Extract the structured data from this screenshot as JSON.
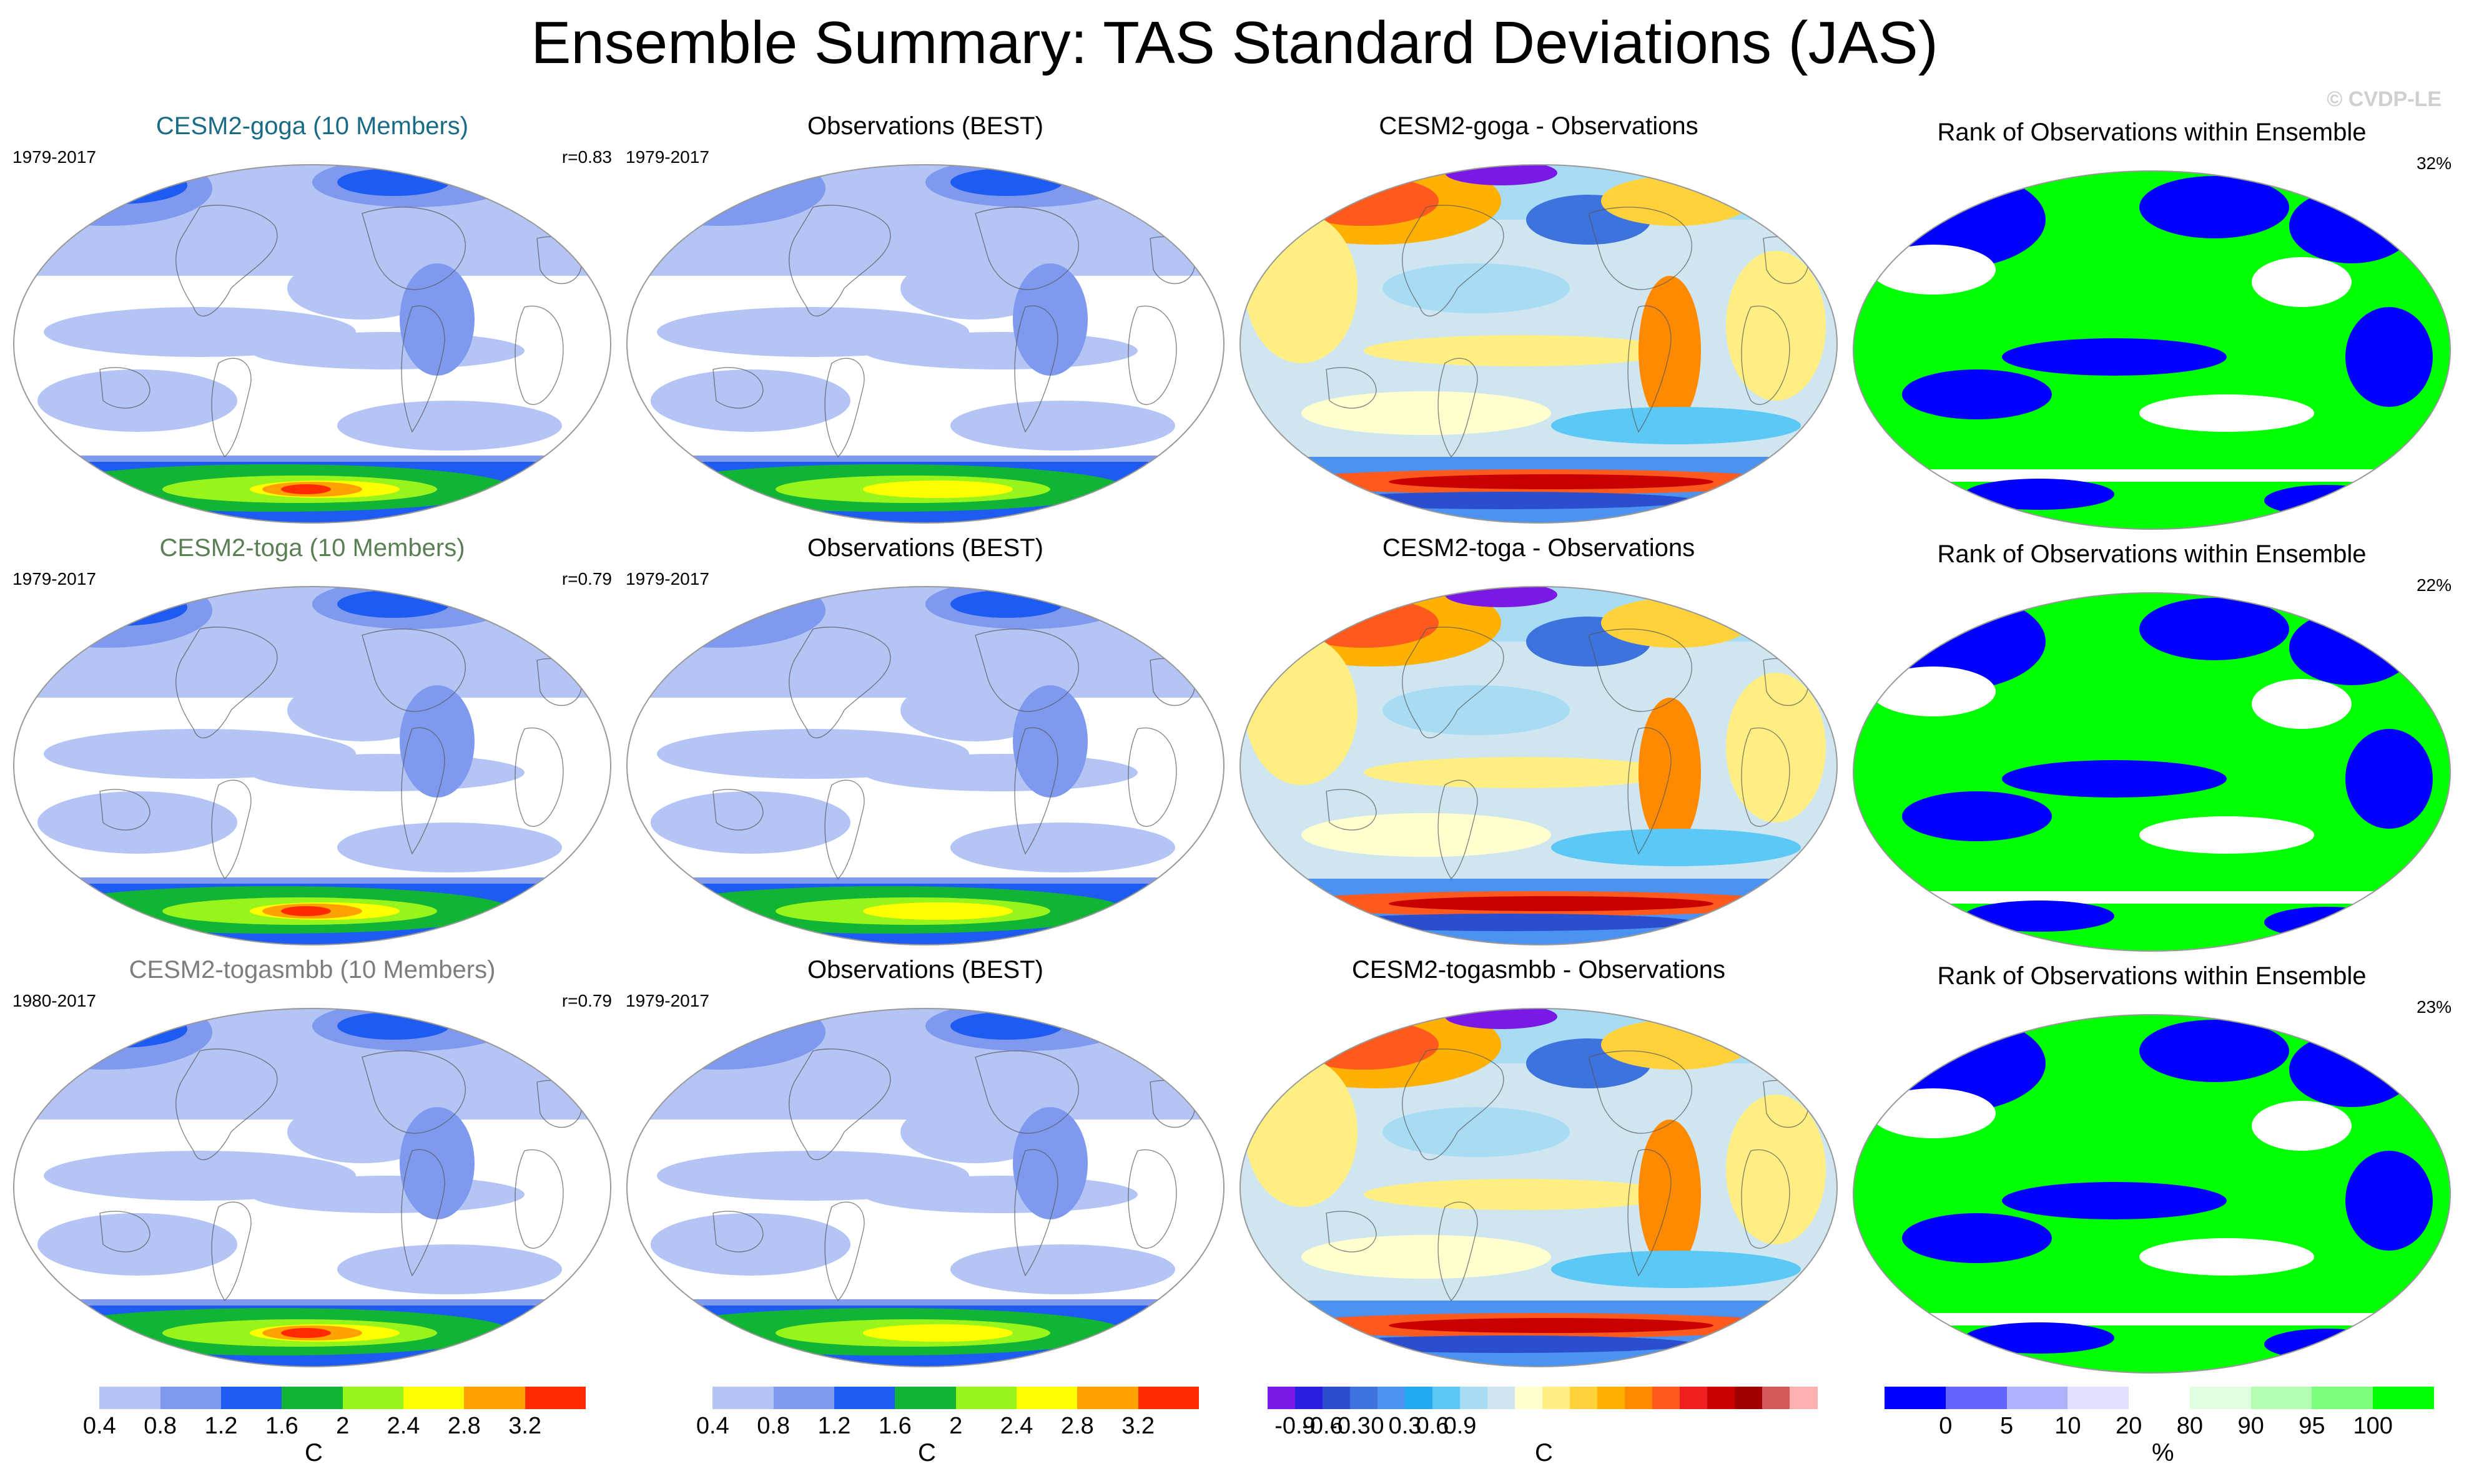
{
  "title": "Ensemble Summary: TAS Standard Deviations (JAS)",
  "credit": "© CVDP-LE",
  "rows": [
    {
      "model": {
        "title": "CESM2-goga (10 Members)",
        "title_color": "#1a6b86",
        "years": "1979-2017",
        "r": "r=0.83"
      },
      "obs": {
        "title": "Observations (BEST)",
        "years": "1979-2017"
      },
      "diff": {
        "title": "CESM2-goga - Observations"
      },
      "rank": {
        "title": "Rank of Observations within Ensemble",
        "pct": "32%"
      }
    },
    {
      "model": {
        "title": "CESM2-toga (10 Members)",
        "title_color": "#5b7f55",
        "years": "1979-2017",
        "r": "r=0.79"
      },
      "obs": {
        "title": "Observations (BEST)",
        "years": "1979-2017"
      },
      "diff": {
        "title": "CESM2-toga - Observations"
      },
      "rank": {
        "title": "Rank of Observations within Ensemble",
        "pct": "22%"
      }
    },
    {
      "model": {
        "title": "CESM2-togasmbb (10 Members)",
        "title_color": "#7d7d7d",
        "years": "1980-2017",
        "r": "r=0.79"
      },
      "obs": {
        "title": "Observations (BEST)",
        "years": "1979-2017"
      },
      "diff": {
        "title": "CESM2-togasmbb - Observations"
      },
      "rank": {
        "title": "Rank of Observations within Ensemble",
        "pct": "23%"
      }
    }
  ],
  "colorbars": {
    "std": {
      "colors": [
        "#ffffff",
        "#b3c4f5",
        "#7f99ee",
        "#1e5bf0",
        "#12b436",
        "#98f51c",
        "#ffff00",
        "#ffa200",
        "#ff2a00"
      ],
      "ticks": [
        "0.4",
        "0.8",
        "1.2",
        "1.6",
        "2",
        "2.4",
        "2.8",
        "3.2"
      ],
      "unit": "C"
    },
    "diff": {
      "colors": [
        "#7a18e6",
        "#2a1fe0",
        "#2b4ecf",
        "#3e72dd",
        "#4c92f0",
        "#22aaf0",
        "#5cc8f5",
        "#a8dcf5",
        "#cfe6f0",
        "#ffffcf",
        "#ffef82",
        "#ffd23c",
        "#ffb000",
        "#ff8a00",
        "#ff5a1e",
        "#f02020",
        "#c80000",
        "#a00000",
        "#d45a5a",
        "#ffb0b0"
      ],
      "ticks": [
        "-0.9",
        "-0.6",
        "-0.3",
        "0",
        "0.3",
        "0.6",
        "0.9"
      ],
      "unit": "C"
    },
    "rank": {
      "colors": [
        "#0000ff",
        "#6464ff",
        "#b0b0ff",
        "#e0e0ff",
        "#ffffff",
        "#e0ffe0",
        "#b4ffb4",
        "#7cff7c",
        "#00ff00"
      ],
      "ticks": [
        "0",
        "5",
        "10",
        "20",
        "80",
        "90",
        "95",
        "100"
      ],
      "unit": "%"
    }
  }
}
